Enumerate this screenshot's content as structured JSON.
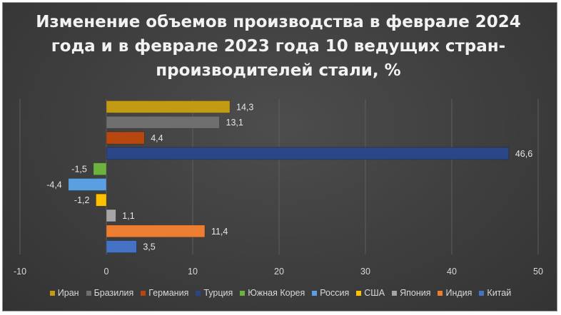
{
  "chart_data": {
    "type": "bar",
    "orientation": "horizontal",
    "title": "Изменение объемов производства в феврале 2024 года и в феврале 2023 года 10 ведущих стран-производителей стали, %",
    "xlabel": "",
    "ylabel": "",
    "xlim": [
      -10,
      50
    ],
    "x_ticks": [
      "-10",
      "0",
      "10",
      "20",
      "30",
      "40",
      "50"
    ],
    "grid": true,
    "legend_position": "bottom",
    "series": [
      {
        "name": "Иран",
        "value": 14.3,
        "label": "14,3",
        "color": "#C39A13"
      },
      {
        "name": "Бразилия",
        "value": 13.1,
        "label": "13,1",
        "color": "#6F6F6F"
      },
      {
        "name": "Германия",
        "value": 4.4,
        "label": "4,4",
        "color": "#B7470E"
      },
      {
        "name": "Турция",
        "value": 46.6,
        "label": "46,6",
        "color": "#2B4686"
      },
      {
        "name": "Южная Корея",
        "value": -1.5,
        "label": "-1,5",
        "color": "#6DB23F"
      },
      {
        "name": "Россия",
        "value": -4.4,
        "label": "-4,4",
        "color": "#5AA0E0"
      },
      {
        "name": "США",
        "value": -1.2,
        "label": "-1,2",
        "color": "#FFC000"
      },
      {
        "name": "Япония",
        "value": 1.1,
        "label": "1,1",
        "color": "#A5A5A5"
      },
      {
        "name": "Индия",
        "value": 11.4,
        "label": "11,4",
        "color": "#ED7D31"
      },
      {
        "name": "Китай",
        "value": 3.5,
        "label": "3,5",
        "color": "#4472C4"
      }
    ]
  }
}
